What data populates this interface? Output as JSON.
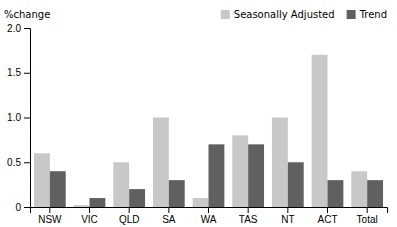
{
  "chart_data": {
    "type": "bar",
    "categories": [
      "NSW",
      "VIC",
      "QLD",
      "SA",
      "WA",
      "TAS",
      "NT",
      "ACT",
      "Total"
    ],
    "series": [
      {
        "name": "Seasonally Adjusted",
        "color": "#c8c8c8",
        "values": [
          0.6,
          0.02,
          0.5,
          1.0,
          0.1,
          0.8,
          1.0,
          1.7,
          0.4
        ]
      },
      {
        "name": "Trend",
        "color": "#606060",
        "values": [
          0.4,
          0.1,
          0.2,
          0.3,
          0.7,
          0.7,
          0.5,
          0.3,
          0.3
        ]
      }
    ],
    "ylabel": "%change",
    "ylim": [
      0,
      2.0
    ],
    "yticks": [
      0,
      0.5,
      {
        "value": 1.0,
        "label": "1.0"
      },
      1.5,
      {
        "value": 2.0,
        "label": "2.0"
      }
    ],
    "legend": "upper right",
    "grid": false
  }
}
